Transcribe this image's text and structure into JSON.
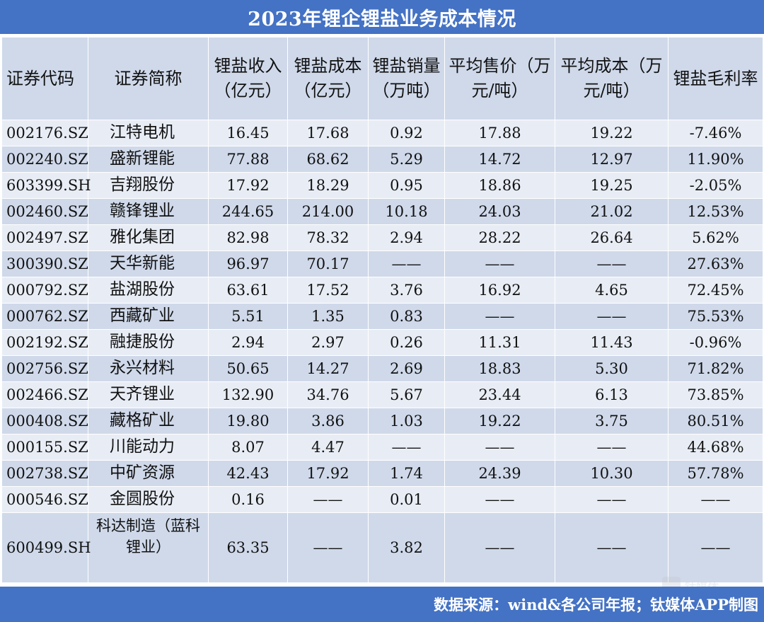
{
  "title": "2023年锂企锂盐业务成本情况",
  "columns": [
    {
      "label": "证券代码"
    },
    {
      "label": "证券简称"
    },
    {
      "label": "锂盐收入（亿元）"
    },
    {
      "label": "锂盐成本（亿元）"
    },
    {
      "label": "锂盐销量（万吨）"
    },
    {
      "label": "平均售价（万元/吨）"
    },
    {
      "label": "平均成本（万元/吨）"
    },
    {
      "label": "锂盐毛利率"
    }
  ],
  "rows": [
    {
      "code": "002176.SZ",
      "name": "江特电机",
      "revenue": "16.45",
      "cost": "17.68",
      "volume": "0.92",
      "avg_price": "17.88",
      "avg_cost": "19.22",
      "margin": "-7.46%"
    },
    {
      "code": "002240.SZ",
      "name": "盛新锂能",
      "revenue": "77.88",
      "cost": "68.62",
      "volume": "5.29",
      "avg_price": "14.72",
      "avg_cost": "12.97",
      "margin": "11.90%"
    },
    {
      "code": "603399.SH",
      "name": "吉翔股份",
      "revenue": "17.92",
      "cost": "18.29",
      "volume": "0.95",
      "avg_price": "18.86",
      "avg_cost": "19.25",
      "margin": "-2.05%"
    },
    {
      "code": "002460.SZ",
      "name": "赣锋锂业",
      "revenue": "244.65",
      "cost": "214.00",
      "volume": "10.18",
      "avg_price": "24.03",
      "avg_cost": "21.02",
      "margin": "12.53%"
    },
    {
      "code": "002497.SZ",
      "name": "雅化集团",
      "revenue": "82.98",
      "cost": "78.32",
      "volume": "2.94",
      "avg_price": "28.22",
      "avg_cost": "26.64",
      "margin": "5.62%"
    },
    {
      "code": "300390.SZ",
      "name": "天华新能",
      "revenue": "96.97",
      "cost": "70.17",
      "volume": "——",
      "avg_price": "——",
      "avg_cost": "——",
      "margin": "27.63%"
    },
    {
      "code": "000792.SZ",
      "name": "盐湖股份",
      "revenue": "63.61",
      "cost": "17.52",
      "volume": "3.76",
      "avg_price": "16.92",
      "avg_cost": "4.65",
      "margin": "72.45%"
    },
    {
      "code": "000762.SZ",
      "name": "西藏矿业",
      "revenue": "5.51",
      "cost": "1.35",
      "volume": "0.83",
      "avg_price": "——",
      "avg_cost": "——",
      "margin": "75.53%"
    },
    {
      "code": "002192.SZ",
      "name": "融捷股份",
      "revenue": "2.94",
      "cost": "2.97",
      "volume": "0.26",
      "avg_price": "11.31",
      "avg_cost": "11.43",
      "margin": "-0.96%"
    },
    {
      "code": "002756.SZ",
      "name": "永兴材料",
      "revenue": "50.65",
      "cost": "14.27",
      "volume": "2.69",
      "avg_price": "18.83",
      "avg_cost": "5.30",
      "margin": "71.82%"
    },
    {
      "code": "002466.SZ",
      "name": "天齐锂业",
      "revenue": "132.90",
      "cost": "34.76",
      "volume": "5.67",
      "avg_price": "23.44",
      "avg_cost": "6.13",
      "margin": "73.85%"
    },
    {
      "code": "000408.SZ",
      "name": "藏格矿业",
      "revenue": "19.80",
      "cost": "3.86",
      "volume": "1.03",
      "avg_price": "19.22",
      "avg_cost": "3.75",
      "margin": "80.51%"
    },
    {
      "code": "000155.SZ",
      "name": "川能动力",
      "revenue": "8.07",
      "cost": "4.47",
      "volume": "——",
      "avg_price": "——",
      "avg_cost": "——",
      "margin": "44.68%"
    },
    {
      "code": "002738.SZ",
      "name": "中矿资源",
      "revenue": "42.43",
      "cost": "17.92",
      "volume": "1.74",
      "avg_price": "24.39",
      "avg_cost": "10.30",
      "margin": "57.78%"
    },
    {
      "code": "000546.SZ",
      "name": "金圆股份",
      "revenue": "0.16",
      "cost": "——",
      "volume": "0.01",
      "avg_price": "——",
      "avg_cost": "——",
      "margin": "——"
    },
    {
      "code": "600499.SH",
      "name": "科达制造（蓝科锂业）",
      "revenue": "63.35",
      "cost": "——",
      "volume": "3.82",
      "avg_price": "——",
      "avg_cost": "——",
      "margin": "——"
    }
  ],
  "footer": {
    "source": "数据来源：wind&各公司年报；钛媒体APP制图"
  },
  "watermark": {
    "text": "钛媒体"
  },
  "colors": {
    "header_bar": "#4472c4",
    "row_light": "#e8edf5",
    "row_dark": "#cfd9ea"
  }
}
